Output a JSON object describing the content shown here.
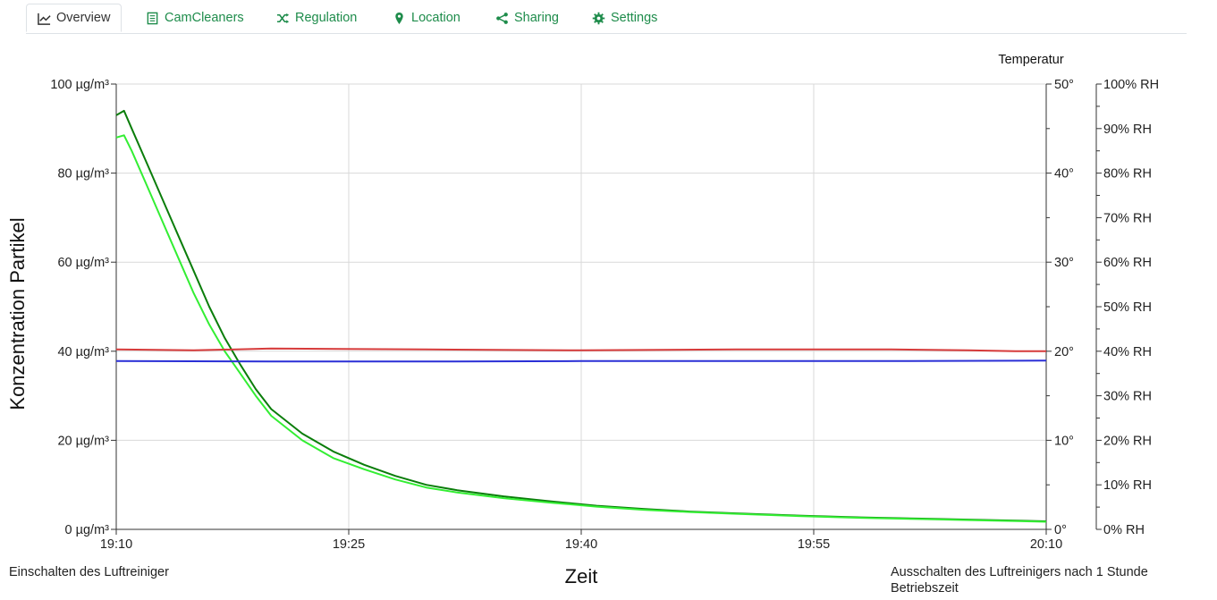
{
  "tabs": [
    {
      "label": "Overview",
      "icon": "line-chart-icon",
      "active": true
    },
    {
      "label": "CamCleaners",
      "icon": "document-icon",
      "active": false
    },
    {
      "label": "Regulation",
      "icon": "shuffle-icon",
      "active": false
    },
    {
      "label": "Location",
      "icon": "map-marker-icon",
      "active": false
    },
    {
      "label": "Sharing",
      "icon": "share-icon",
      "active": false
    },
    {
      "label": "Settings",
      "icon": "gear-icon",
      "active": false
    }
  ],
  "colors": {
    "accent": "#1e8c4b",
    "pm_dark": "#0a7d0a",
    "pm_light": "#33ee33",
    "temperature": "#d63a3a",
    "humidity": "#2a2fd6"
  },
  "notes": {
    "start": "Einschalten des Luftreiniger",
    "end": "Ausschalten des Luftreinigers nach 1 Stunde Betriebszeit"
  },
  "chart_data": {
    "type": "line",
    "xlabel": "Zeit",
    "ylabel": "Konzentration Partikel",
    "y2label": "Temperatur",
    "x_ticks": [
      "19:10",
      "19:25",
      "19:40",
      "19:55",
      "20:10"
    ],
    "x_range_minutes": [
      0,
      60
    ],
    "y_left": {
      "unit": "µg/m³",
      "range": [
        0,
        100
      ],
      "ticks": [
        "0 µg/m³",
        "20 µg/m³",
        "40 µg/m³",
        "60 µg/m³",
        "80 µg/m³",
        "100 µg/m³"
      ]
    },
    "y_temp": {
      "range": [
        0,
        50
      ],
      "ticks": [
        "0°",
        "10°",
        "20°",
        "30°",
        "40°",
        "50°"
      ]
    },
    "y_rh": {
      "range": [
        0,
        100
      ],
      "ticks": [
        "0% RH",
        "10% RH",
        "20% RH",
        "30% RH",
        "40% RH",
        "50% RH",
        "60% RH",
        "70% RH",
        "80% RH",
        "90% RH",
        "100% RH"
      ]
    },
    "grid": true,
    "series": [
      {
        "axis": "left",
        "color": "#0a7d0a",
        "x": [
          0,
          0.5,
          1,
          2,
          3,
          4,
          5,
          6,
          7,
          8,
          9,
          10,
          12,
          14,
          16,
          18,
          20,
          22,
          25,
          28,
          31,
          34,
          37,
          40,
          44,
          48,
          52,
          56,
          60
        ],
        "y": [
          93,
          94,
          90,
          82,
          74,
          66,
          58,
          50,
          43,
          37,
          31.5,
          27,
          21.5,
          17.5,
          14.5,
          12,
          10,
          8.8,
          7.4,
          6.3,
          5.3,
          4.6,
          4.0,
          3.6,
          3.1,
          2.7,
          2.4,
          2.1,
          1.8
        ]
      },
      {
        "axis": "left",
        "color": "#33ee33",
        "x": [
          0,
          0.5,
          1,
          2,
          3,
          4,
          5,
          6,
          7,
          8,
          9,
          10,
          12,
          14,
          16,
          18,
          20,
          22,
          25,
          28,
          31,
          34,
          37,
          40,
          44,
          48,
          52,
          56,
          60
        ],
        "y": [
          88,
          88.5,
          85,
          77,
          69,
          61,
          53,
          46,
          40,
          35,
          30,
          25.5,
          20,
          16,
          13.5,
          11.2,
          9.4,
          8.3,
          7.0,
          6.0,
          5.1,
          4.4,
          3.9,
          3.5,
          3.0,
          2.6,
          2.3,
          2.0,
          1.7
        ]
      },
      {
        "axis": "temp",
        "color": "#d63a3a",
        "x": [
          0,
          5,
          10,
          20,
          30,
          40,
          50,
          55,
          58,
          60
        ],
        "y": [
          20.2,
          20.1,
          20.3,
          20.2,
          20.1,
          20.2,
          20.2,
          20.1,
          20.0,
          20.0
        ]
      },
      {
        "axis": "rh",
        "color": "#2a2fd6",
        "x": [
          0,
          10,
          20,
          30,
          40,
          50,
          60
        ],
        "y": [
          37.8,
          37.7,
          37.7,
          37.8,
          37.8,
          37.8,
          37.9
        ]
      }
    ]
  }
}
